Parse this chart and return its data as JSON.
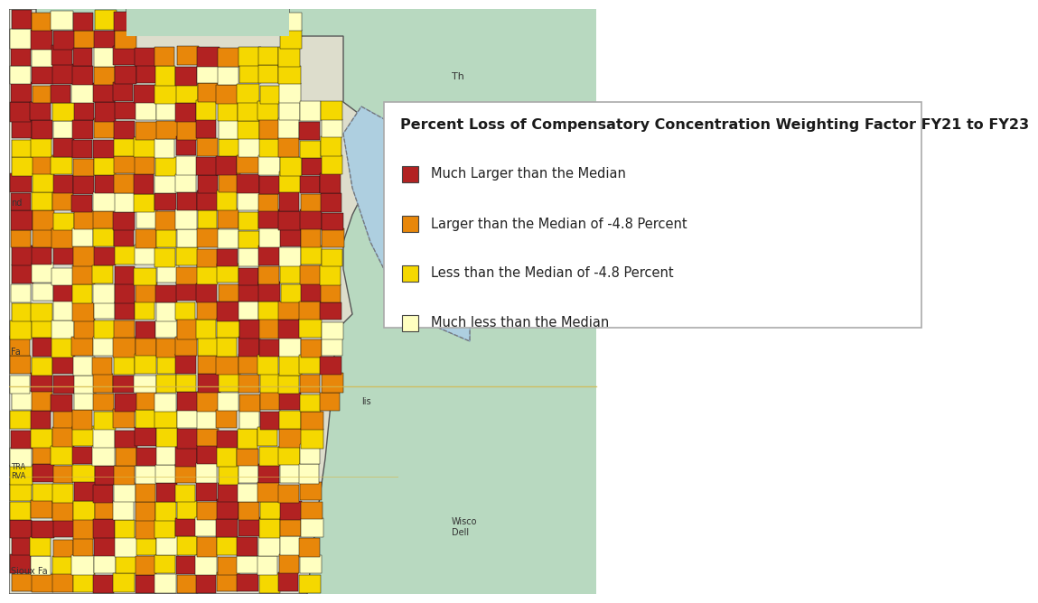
{
  "title": "Percent Loss of Compensatory Concentration Weighting Factor FY21 to FY23",
  "legend_items": [
    {
      "label": "Much Larger than the Median",
      "color": "#B22222"
    },
    {
      "label": "Larger than the Median of -4.8 Percent",
      "color": "#E8870A"
    },
    {
      "label": "Less than the Median of -4.8 Percent",
      "color": "#F5D800"
    },
    {
      "label": "Much less than the Median",
      "color": "#FFFFC0"
    }
  ],
  "map_bg_color": "#B8D9C0",
  "water_color": "#AECFE0",
  "title_fontsize": 11.5,
  "legend_label_fontsize": 10.5,
  "title_color": "#1a1a1a",
  "label_color": "#222222",
  "legend_box_color": "#ffffff",
  "legend_border_color": "#aaaaaa",
  "background_color": "#ffffff"
}
